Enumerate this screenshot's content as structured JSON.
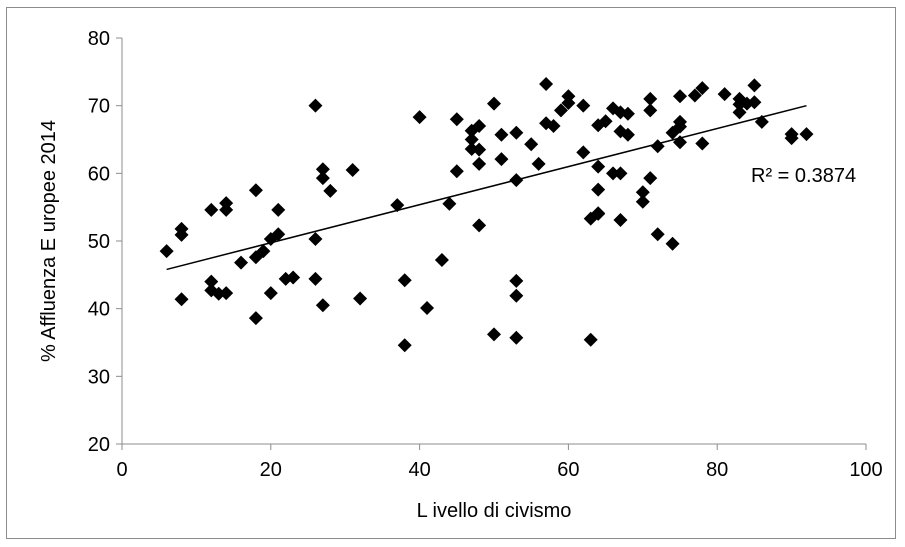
{
  "chart_data": {
    "type": "scatter",
    "title": "",
    "xlabel": "L ivello di civismo",
    "ylabel": "% Affluenza E uropee 2014",
    "xlim": [
      0,
      100
    ],
    "ylim": [
      20,
      80
    ],
    "xticks": [
      "0",
      "20",
      "40",
      "60",
      "80",
      "100"
    ],
    "yticks": [
      "20",
      "30",
      "40",
      "50",
      "60",
      "70",
      "80"
    ],
    "grid": false,
    "marker_color": "#000000",
    "marker": "diamond",
    "trendline": {
      "type": "linear",
      "x": [
        6,
        92
      ],
      "y": [
        45.8,
        70.0
      ],
      "r2_label": "R² = 0.3874"
    },
    "points": [
      [
        6,
        48.5
      ],
      [
        8,
        51.8
      ],
      [
        8,
        50.9
      ],
      [
        8,
        41.4
      ],
      [
        12,
        54.6
      ],
      [
        12,
        44.0
      ],
      [
        12,
        42.7
      ],
      [
        13,
        42.2
      ],
      [
        14,
        55.6
      ],
      [
        14,
        54.6
      ],
      [
        14,
        42.3
      ],
      [
        16,
        46.8
      ],
      [
        18,
        57.5
      ],
      [
        18,
        47.6
      ],
      [
        18,
        38.6
      ],
      [
        19,
        48.5
      ],
      [
        20,
        50.3
      ],
      [
        20,
        42.3
      ],
      [
        21,
        54.6
      ],
      [
        21,
        51.0
      ],
      [
        22,
        44.4
      ],
      [
        23,
        44.6
      ],
      [
        26,
        70.0
      ],
      [
        26,
        50.3
      ],
      [
        26,
        44.4
      ],
      [
        27,
        60.6
      ],
      [
        27,
        59.3
      ],
      [
        27,
        40.5
      ],
      [
        28,
        57.4
      ],
      [
        31,
        60.5
      ],
      [
        32,
        41.5
      ],
      [
        37,
        55.3
      ],
      [
        38,
        44.2
      ],
      [
        38,
        34.6
      ],
      [
        40,
        68.3
      ],
      [
        41,
        40.1
      ],
      [
        43,
        47.2
      ],
      [
        44,
        55.5
      ],
      [
        45,
        68.0
      ],
      [
        45,
        60.3
      ],
      [
        47,
        66.3
      ],
      [
        47,
        65.0
      ],
      [
        47,
        63.6
      ],
      [
        48,
        67.0
      ],
      [
        48,
        63.5
      ],
      [
        48,
        61.4
      ],
      [
        48,
        52.3
      ],
      [
        50,
        70.3
      ],
      [
        50,
        36.2
      ],
      [
        51,
        65.7
      ],
      [
        51,
        62.1
      ],
      [
        53,
        66.0
      ],
      [
        53,
        59.0
      ],
      [
        53,
        44.1
      ],
      [
        53,
        41.9
      ],
      [
        53,
        35.7
      ],
      [
        55,
        64.3
      ],
      [
        56,
        61.4
      ],
      [
        57,
        73.2
      ],
      [
        57,
        67.4
      ],
      [
        58,
        67.0
      ],
      [
        59,
        69.3
      ],
      [
        60,
        71.4
      ],
      [
        60,
        70.4
      ],
      [
        62,
        70.0
      ],
      [
        62,
        63.1
      ],
      [
        63,
        53.3
      ],
      [
        63,
        35.4
      ],
      [
        64,
        67.1
      ],
      [
        64,
        61.0
      ],
      [
        64,
        57.6
      ],
      [
        64,
        54.1
      ],
      [
        64,
        54.0
      ],
      [
        65,
        67.7
      ],
      [
        66,
        69.6
      ],
      [
        66,
        60.0
      ],
      [
        67,
        69.0
      ],
      [
        67,
        66.2
      ],
      [
        67,
        60.0
      ],
      [
        67,
        53.1
      ],
      [
        68,
        68.8
      ],
      [
        68,
        65.7
      ],
      [
        70,
        57.2
      ],
      [
        70,
        55.8
      ],
      [
        71,
        71.0
      ],
      [
        71,
        69.3
      ],
      [
        71,
        59.3
      ],
      [
        72,
        64.0
      ],
      [
        72,
        51.0
      ],
      [
        74,
        66.0
      ],
      [
        74,
        49.6
      ],
      [
        75,
        71.4
      ],
      [
        75,
        67.6
      ],
      [
        75,
        66.9
      ],
      [
        75,
        64.6
      ],
      [
        77,
        71.5
      ],
      [
        78,
        72.6
      ],
      [
        78,
        64.4
      ],
      [
        81,
        71.7
      ],
      [
        83,
        71.0
      ],
      [
        83,
        70.2
      ],
      [
        83,
        69.0
      ],
      [
        84,
        70.3
      ],
      [
        85,
        73.0
      ],
      [
        85,
        70.5
      ],
      [
        86,
        67.6
      ],
      [
        90,
        65.8
      ],
      [
        90,
        65.2
      ],
      [
        92,
        65.8
      ]
    ]
  }
}
